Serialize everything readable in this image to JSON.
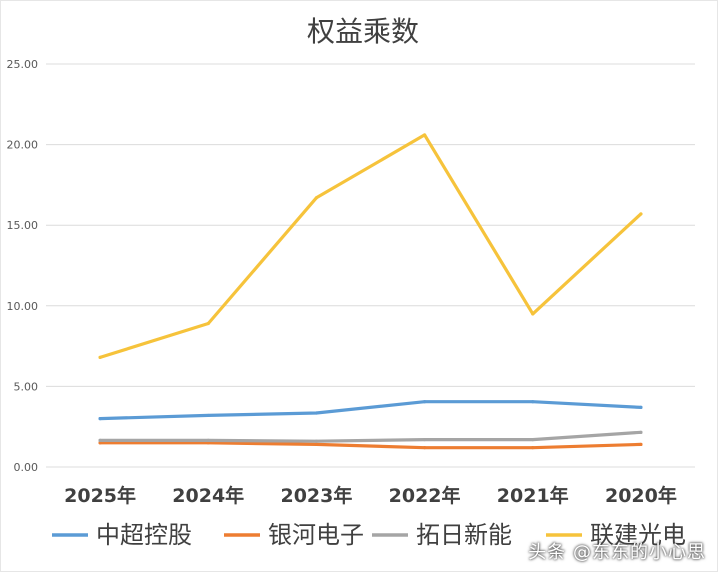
{
  "chart_data": {
    "type": "line",
    "title": "权益乘数",
    "categories": [
      "2025年",
      "2024年",
      "2023年",
      "2022年",
      "2021年",
      "2020年"
    ],
    "ylim": [
      0,
      25
    ],
    "yticks": [
      "0.00",
      "5.00",
      "10.00",
      "15.00",
      "20.00",
      "25.00"
    ],
    "grid": true,
    "legend_position": "bottom",
    "series": [
      {
        "name": "中超控股",
        "color": "#5b9bd5",
        "values": [
          3.0,
          3.2,
          3.35,
          4.05,
          4.05,
          3.7
        ]
      },
      {
        "name": "银河电子",
        "color": "#ed7d31",
        "values": [
          1.5,
          1.5,
          1.4,
          1.2,
          1.2,
          1.4
        ]
      },
      {
        "name": "拓日新能",
        "color": "#a5a5a5",
        "values": [
          1.65,
          1.65,
          1.6,
          1.7,
          1.7,
          2.15
        ]
      },
      {
        "name": "联建光电",
        "color": "#f6c33b",
        "values": [
          6.8,
          8.9,
          16.7,
          20.6,
          9.5,
          15.7
        ]
      }
    ]
  },
  "watermark": "头条 @东东的小心思"
}
